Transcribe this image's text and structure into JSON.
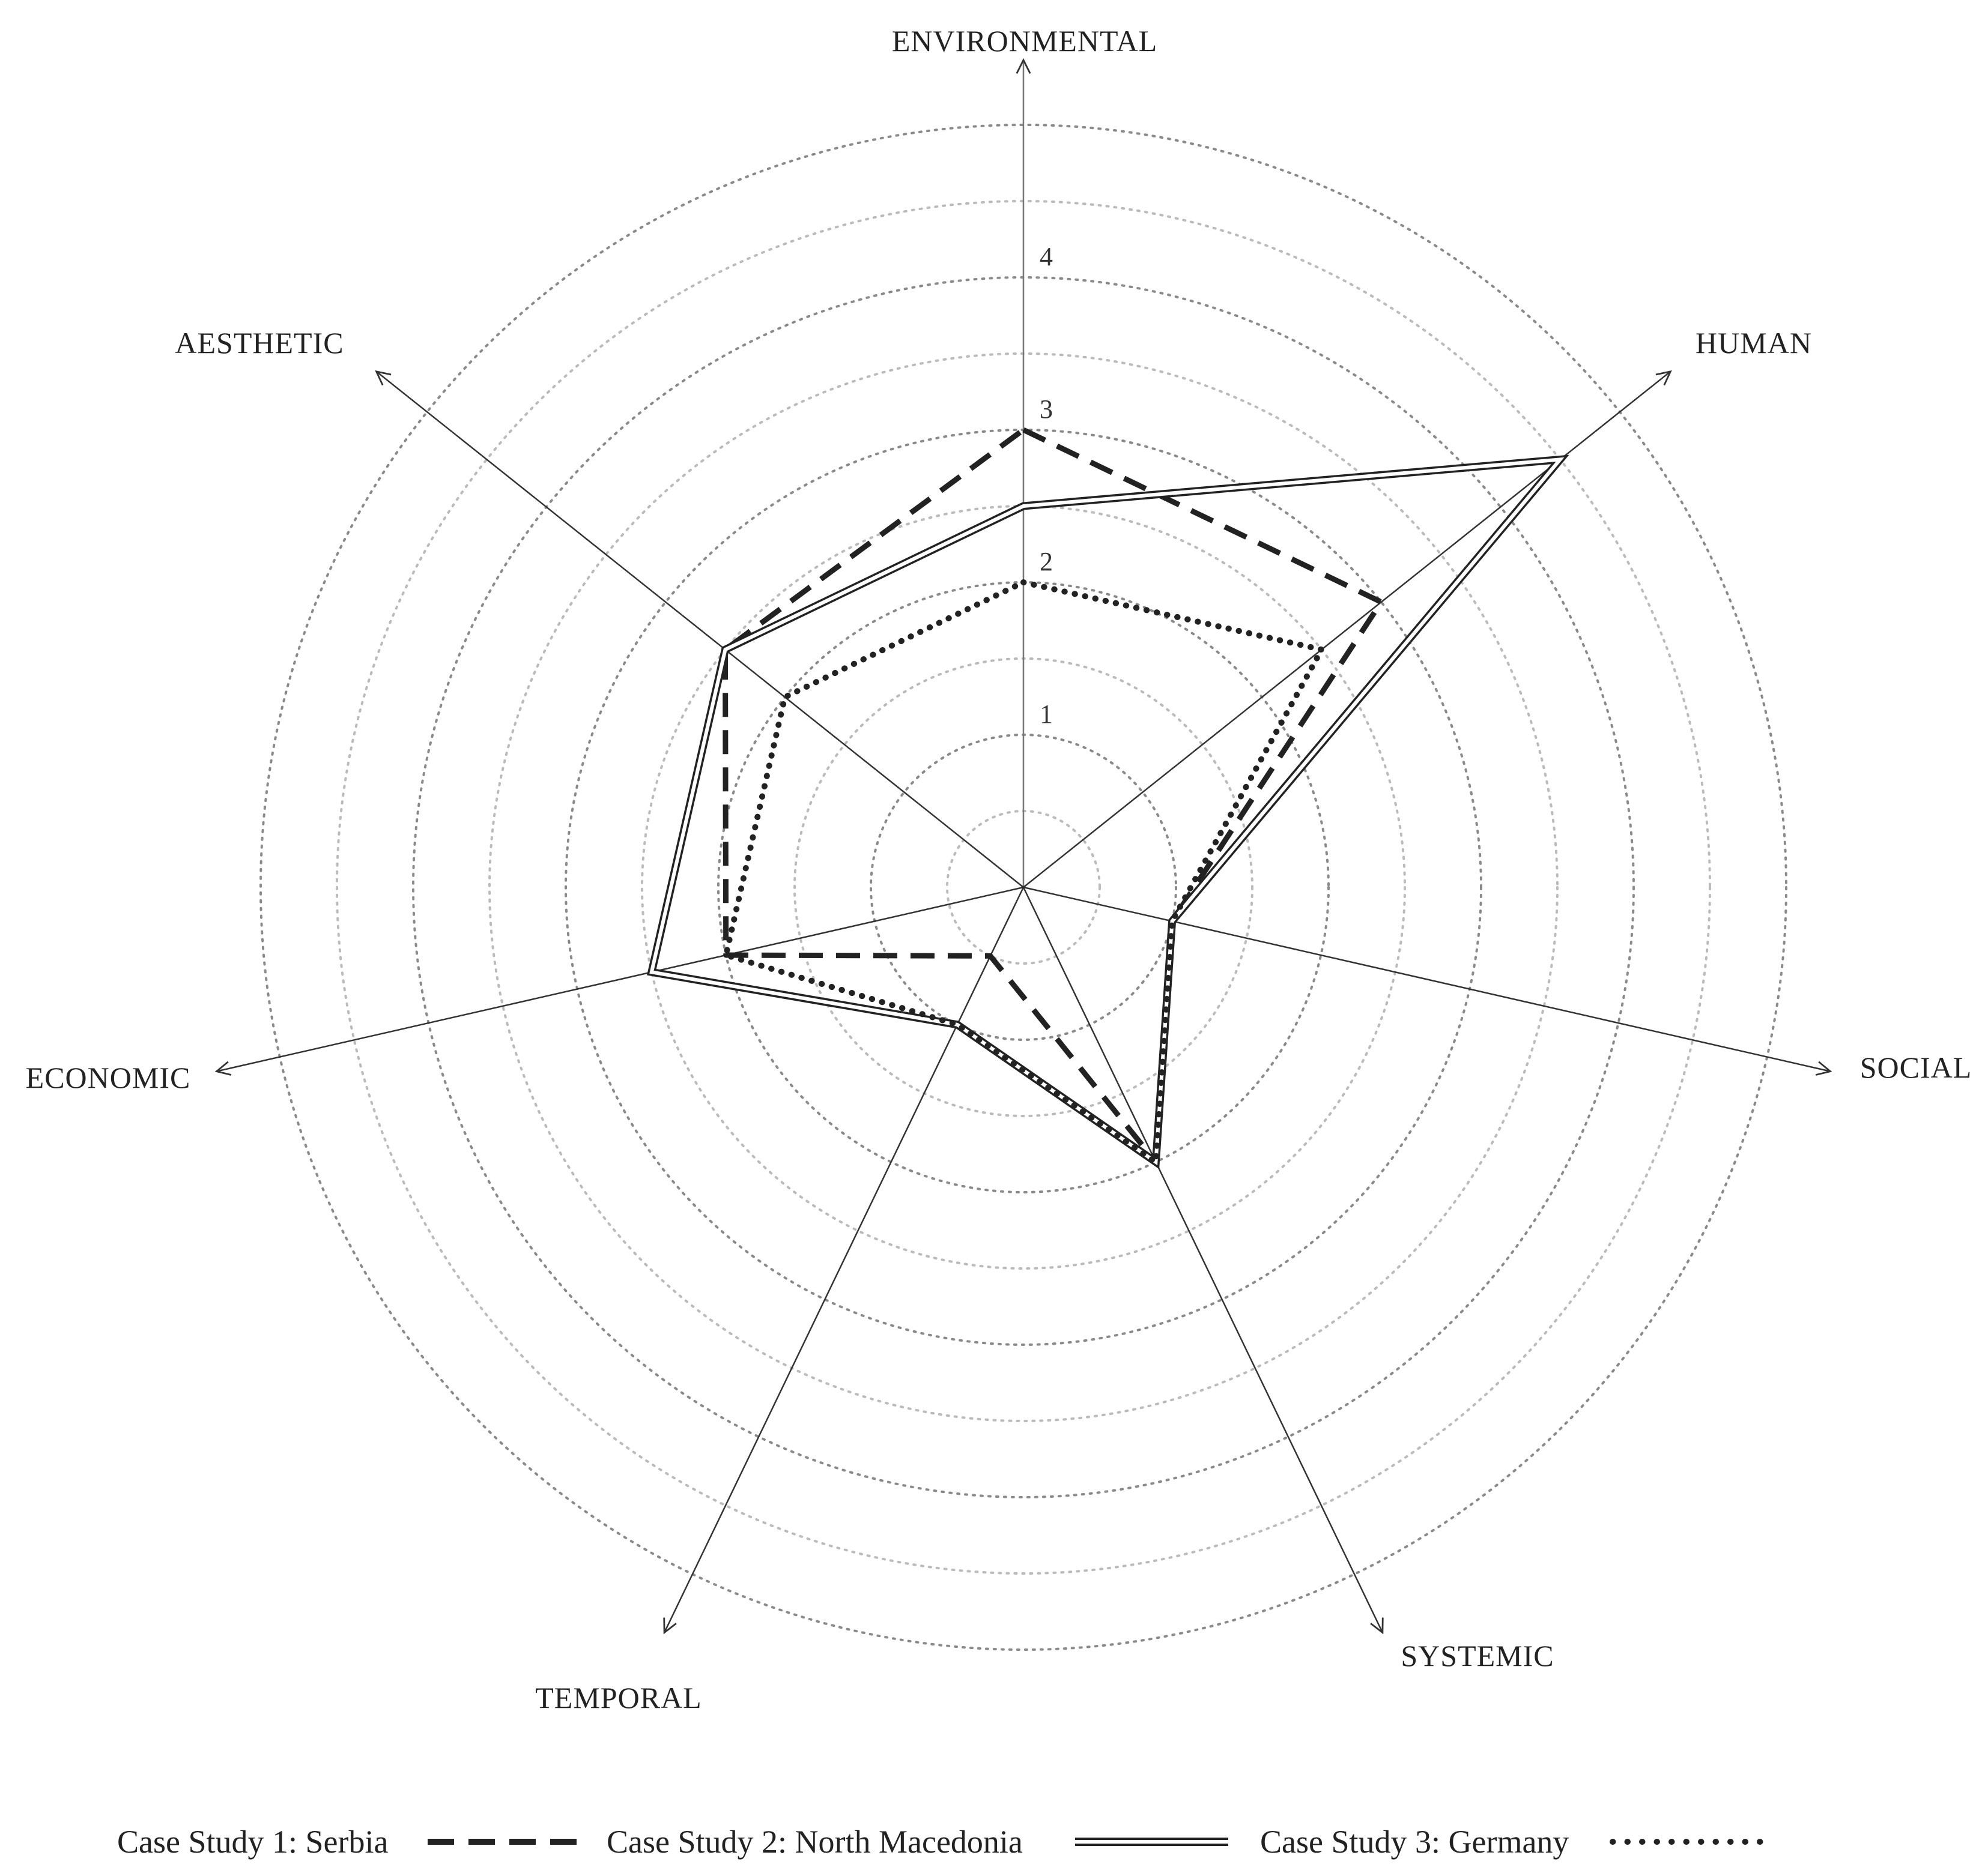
{
  "chart_data": {
    "type": "radar",
    "title": "",
    "axes": [
      "ENVIRONMENTAL",
      "HUMAN",
      "SOCIAL",
      "SYSTEMIC",
      "TEMPORAL",
      "ECONOMIC",
      "AESTHETIC"
    ],
    "ticks": [
      "1",
      "2",
      "3",
      "4"
    ],
    "range": [
      0,
      5
    ],
    "grid": "dotted concentric circles at 0.5 steps",
    "legend": "bottom",
    "series": [
      {
        "name": "Case Study 1: Serbia",
        "style": "dashed",
        "color": "#222222",
        "values": [
          3,
          3,
          1,
          2,
          0.5,
          2,
          2.5
        ]
      },
      {
        "name": "Case Study 2: North Macedonia",
        "style": "double",
        "color": "#222222",
        "values": [
          2.5,
          4.5,
          1,
          2,
          1,
          2.5,
          2.5
        ]
      },
      {
        "name": "Case Study 3: Germany",
        "style": "dotted",
        "color": "#222222",
        "values": [
          2,
          2.5,
          1,
          2,
          1,
          2,
          2
        ]
      }
    ]
  }
}
